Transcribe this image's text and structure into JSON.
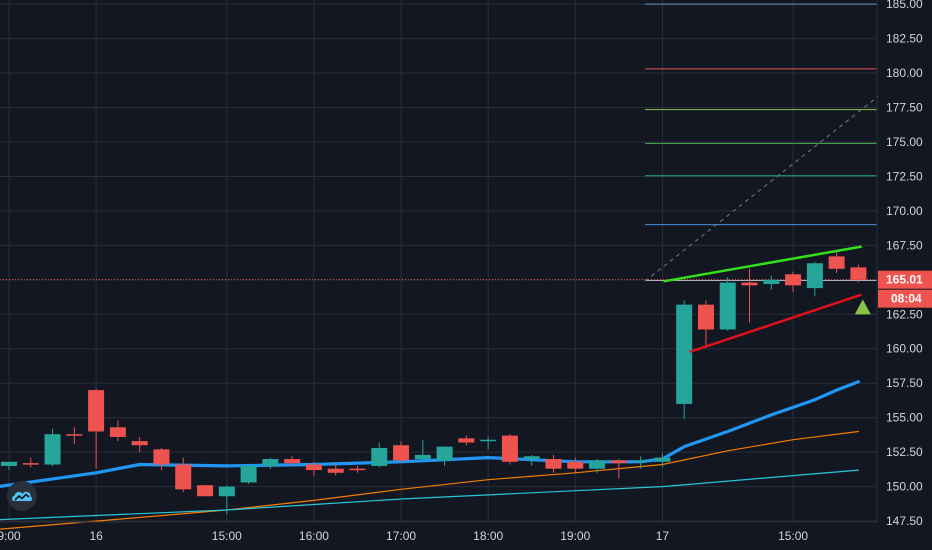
{
  "colors": {
    "background": "#131722",
    "grid": "#2a2e39",
    "up": "#26a69a",
    "down": "#ef5350",
    "text": "#d1d4dc",
    "ma_fast": "#2196f3",
    "ma_mid": "#f57c00",
    "ma_slow": "#26c6da",
    "wedge_upper": "#32e01c",
    "wedge_lower": "#e0101a",
    "marker": "#8bc34a"
  },
  "price_badges": {
    "last_price": "165.01",
    "countdown": "08:04"
  },
  "logo_icon": "tradingview-cloud-icon",
  "chart_data": {
    "type": "candlestick",
    "yaxis": {
      "ticks": [
        "185.00",
        "182.50",
        "180.00",
        "177.50",
        "175.00",
        "172.50",
        "170.00",
        "167.50",
        "165.00",
        "162.50",
        "160.00",
        "157.50",
        "155.00",
        "152.50",
        "150.00",
        "147.50"
      ],
      "ylim": [
        145.4,
        185.3
      ]
    },
    "xaxis": {
      "ticks": [
        {
          "label": "9:00",
          "x": 0
        },
        {
          "label": "16",
          "x": 4
        },
        {
          "label": "15:00",
          "x": 10
        },
        {
          "label": "16:00",
          "x": 14
        },
        {
          "label": "17:00",
          "x": 18
        },
        {
          "label": "18:00",
          "x": 22
        },
        {
          "label": "19:00",
          "x": 26
        },
        {
          "label": "17",
          "x": 30
        },
        {
          "label": "15:00",
          "x": 36
        }
      ]
    },
    "candles": [
      {
        "x": 0,
        "o": 151.5,
        "h": 151.8,
        "l": 151.2,
        "c": 151.8
      },
      {
        "x": 1,
        "o": 151.7,
        "h": 152.1,
        "l": 151.4,
        "c": 151.6
      },
      {
        "x": 2,
        "o": 151.6,
        "h": 154.2,
        "l": 151.5,
        "c": 153.8
      },
      {
        "x": 3,
        "o": 153.8,
        "h": 154.3,
        "l": 153.1,
        "c": 153.7
      },
      {
        "x": 4,
        "o": 157.0,
        "h": 157.1,
        "l": 151.3,
        "c": 154.0
      },
      {
        "x": 5,
        "o": 154.3,
        "h": 154.8,
        "l": 153.3,
        "c": 153.6
      },
      {
        "x": 6,
        "o": 153.3,
        "h": 153.6,
        "l": 152.5,
        "c": 153.0
      },
      {
        "x": 7,
        "o": 152.7,
        "h": 152.8,
        "l": 151.2,
        "c": 151.6
      },
      {
        "x": 8,
        "o": 151.6,
        "h": 152.1,
        "l": 149.6,
        "c": 149.8
      },
      {
        "x": 9,
        "o": 150.1,
        "h": 150.1,
        "l": 149.3,
        "c": 149.3
      },
      {
        "x": 10,
        "o": 149.3,
        "h": 150.1,
        "l": 148.0,
        "c": 150.0
      },
      {
        "x": 11,
        "o": 150.3,
        "h": 151.6,
        "l": 150.2,
        "c": 151.5
      },
      {
        "x": 12,
        "o": 151.5,
        "h": 152.1,
        "l": 151.3,
        "c": 152.0
      },
      {
        "x": 13,
        "o": 152.0,
        "h": 152.2,
        "l": 151.5,
        "c": 151.7
      },
      {
        "x": 14,
        "o": 151.6,
        "h": 151.8,
        "l": 150.8,
        "c": 151.2
      },
      {
        "x": 15,
        "o": 151.3,
        "h": 151.6,
        "l": 150.8,
        "c": 151.0
      },
      {
        "x": 16,
        "o": 151.3,
        "h": 151.5,
        "l": 151.0,
        "c": 151.2
      },
      {
        "x": 17,
        "o": 151.5,
        "h": 153.2,
        "l": 151.4,
        "c": 152.8
      },
      {
        "x": 18,
        "o": 153.0,
        "h": 153.3,
        "l": 151.8,
        "c": 151.9
      },
      {
        "x": 19,
        "o": 152.0,
        "h": 153.4,
        "l": 151.8,
        "c": 152.3
      },
      {
        "x": 20,
        "o": 151.9,
        "h": 152.9,
        "l": 151.5,
        "c": 152.9
      },
      {
        "x": 21,
        "o": 153.5,
        "h": 153.7,
        "l": 153.0,
        "c": 153.2
      },
      {
        "x": 22,
        "o": 153.4,
        "h": 153.6,
        "l": 152.7,
        "c": 153.4
      },
      {
        "x": 23,
        "o": 153.7,
        "h": 153.8,
        "l": 151.6,
        "c": 151.8
      },
      {
        "x": 24,
        "o": 152.0,
        "h": 152.3,
        "l": 151.5,
        "c": 152.2
      },
      {
        "x": 25,
        "o": 152.0,
        "h": 152.3,
        "l": 151.0,
        "c": 151.3
      },
      {
        "x": 26,
        "o": 151.8,
        "h": 152.1,
        "l": 151.0,
        "c": 151.3
      },
      {
        "x": 27,
        "o": 151.3,
        "h": 152.0,
        "l": 151.0,
        "c": 151.9
      },
      {
        "x": 28,
        "o": 151.9,
        "h": 152.0,
        "l": 150.6,
        "c": 151.7
      },
      {
        "x": 29,
        "o": 151.8,
        "h": 152.2,
        "l": 151.3,
        "c": 151.9
      },
      {
        "x": 30,
        "o": 151.8,
        "h": 152.4,
        "l": 151.4,
        "c": 152.1
      },
      {
        "x": 31,
        "o": 156.0,
        "h": 163.5,
        "l": 154.9,
        "c": 163.2
      },
      {
        "x": 32,
        "o": 163.2,
        "h": 163.5,
        "l": 160.2,
        "c": 161.4
      },
      {
        "x": 33,
        "o": 161.4,
        "h": 165.2,
        "l": 161.3,
        "c": 164.8
      },
      {
        "x": 34,
        "o": 164.8,
        "h": 165.8,
        "l": 161.9,
        "c": 164.6
      },
      {
        "x": 35,
        "o": 164.7,
        "h": 165.3,
        "l": 164.3,
        "c": 165.0
      },
      {
        "x": 36,
        "o": 165.4,
        "h": 165.6,
        "l": 164.1,
        "c": 164.6
      },
      {
        "x": 37,
        "o": 164.4,
        "h": 166.3,
        "l": 163.8,
        "c": 166.2
      },
      {
        "x": 38,
        "o": 166.7,
        "h": 167.0,
        "l": 165.5,
        "c": 165.8
      },
      {
        "x": 39,
        "o": 165.9,
        "h": 166.1,
        "l": 164.8,
        "c": 165.0
      }
    ],
    "moving_averages": [
      {
        "color_key": "ma_fast",
        "width": 3.2,
        "points": [
          [
            -0.5,
            150.0
          ],
          [
            4,
            151.0
          ],
          [
            6,
            151.6
          ],
          [
            10,
            151.5
          ],
          [
            14,
            151.6
          ],
          [
            18,
            151.8
          ],
          [
            22,
            152.1
          ],
          [
            26,
            151.8
          ],
          [
            29,
            151.8
          ],
          [
            30,
            152.0
          ],
          [
            31,
            152.9
          ],
          [
            33,
            154.0
          ],
          [
            35,
            155.2
          ],
          [
            37,
            156.3
          ],
          [
            38,
            157.0
          ],
          [
            39,
            157.6
          ]
        ]
      },
      {
        "color_key": "ma_mid",
        "width": 1.2,
        "points": [
          [
            -0.5,
            146.9
          ],
          [
            4,
            147.5
          ],
          [
            10,
            148.3
          ],
          [
            14,
            149.0
          ],
          [
            18,
            149.8
          ],
          [
            22,
            150.5
          ],
          [
            26,
            151.0
          ],
          [
            30,
            151.6
          ],
          [
            33,
            152.6
          ],
          [
            36,
            153.4
          ],
          [
            39,
            154.0
          ]
        ]
      },
      {
        "color_key": "ma_slow",
        "width": 1.2,
        "points": [
          [
            -0.5,
            147.6
          ],
          [
            4,
            147.9
          ],
          [
            10,
            148.3
          ],
          [
            14,
            148.7
          ],
          [
            18,
            149.1
          ],
          [
            22,
            149.4
          ],
          [
            26,
            149.7
          ],
          [
            30,
            150.0
          ],
          [
            33,
            150.4
          ],
          [
            36,
            150.8
          ],
          [
            39,
            151.2
          ]
        ]
      }
    ],
    "horizontal_levels": [
      {
        "y": 185.0,
        "color": "#6c8eb0"
      },
      {
        "y": 180.3,
        "color": "#e05454"
      },
      {
        "y": 177.35,
        "color": "#8bc34a"
      },
      {
        "y": 174.9,
        "color": "#4caf50"
      },
      {
        "y": 172.55,
        "color": "#1ea58a"
      },
      {
        "y": 169.0,
        "color": "#4a90d9"
      },
      {
        "y": 164.95,
        "color": "#b0b3bb"
      }
    ],
    "level_start_x": 29.2,
    "current_price_line": 165.01,
    "wedge_lines": [
      {
        "color_key": "wedge_upper",
        "from": [
          30.1,
          164.9
        ],
        "to": [
          39.1,
          167.4
        ]
      },
      {
        "color_key": "wedge_lower",
        "from": [
          31.3,
          159.8
        ],
        "to": [
          39.1,
          163.9
        ]
      }
    ],
    "dashed_projection": {
      "from": [
        29.2,
        164.9
      ],
      "to": [
        39.9,
        178.3
      ]
    },
    "signal_marker": {
      "x": 39.2,
      "y": 163.0
    }
  }
}
